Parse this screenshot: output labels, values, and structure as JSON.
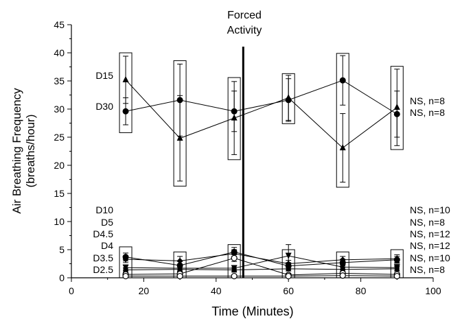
{
  "chart_data": {
    "type": "line",
    "title": "",
    "xlabel": "Time (Minutes)",
    "ylabel_line1": "Air Breathing Frequency",
    "ylabel_line2": "(breaths/hour)",
    "xlim": [
      0,
      100
    ],
    "ylim": [
      0,
      45
    ],
    "xticks": [
      "0",
      "20",
      "40",
      "60",
      "80",
      "100"
    ],
    "yticks": [
      "0",
      "5",
      "10",
      "15",
      "20",
      "25",
      "30",
      "35",
      "40",
      "45"
    ],
    "grid": false,
    "annotation": {
      "label_line1": "Forced",
      "label_line2": "Activity",
      "x": 47.5
    },
    "x": [
      15,
      30,
      45,
      60,
      75,
      90
    ],
    "series": [
      {
        "name": "D15",
        "marker": "triangle-up",
        "values": [
          35.2,
          24.8,
          28.4,
          32.0,
          23.1,
          30.3
        ],
        "err": [
          4.2,
          7.6,
          6.5,
          4.0,
          6.1,
          6.8
        ],
        "note": "NS, n=8"
      },
      {
        "name": "D30",
        "marker": "circle-filled",
        "values": [
          29.6,
          31.6,
          29.6,
          31.6,
          35.1,
          29.1
        ],
        "err": [
          2.4,
          6.4,
          3.6,
          3.8,
          4.4,
          4.1
        ],
        "note": "NS, n=8"
      },
      {
        "name": "D10",
        "marker": "diamond",
        "values": [
          3.3,
          3.0,
          4.3,
          2.5,
          3.2,
          3.4
        ],
        "err": [
          0.6,
          0.8,
          0.7,
          0.6,
          0.6,
          0.7
        ],
        "note": "NS, n=10"
      },
      {
        "name": "D5",
        "marker": "circle-filled",
        "values": [
          3.7,
          2.2,
          4.6,
          2.1,
          2.7,
          3.2
        ],
        "err": [
          0.7,
          0.7,
          0.8,
          0.6,
          0.6,
          0.6
        ],
        "note": "NS, n=8"
      },
      {
        "name": "D4.5",
        "marker": "triangle-down",
        "values": [
          1.8,
          1.7,
          1.7,
          3.9,
          1.9,
          1.8
        ],
        "err": [
          0.5,
          0.5,
          0.5,
          2.0,
          0.5,
          0.6
        ],
        "note": "NS, n=12"
      },
      {
        "name": "D4",
        "marker": "square",
        "values": [
          1.4,
          1.5,
          1.4,
          1.6,
          1.5,
          1.6
        ],
        "err": [
          0.4,
          0.4,
          0.4,
          0.4,
          0.4,
          0.4
        ],
        "note": "NS, n=12"
      },
      {
        "name": "D3.5",
        "marker": "circle-open",
        "values": [
          0.6,
          0.7,
          3.5,
          0.5,
          0.8,
          0.6
        ],
        "err": [
          0.3,
          0.3,
          0.6,
          0.3,
          0.3,
          0.3
        ],
        "note": "NS, n=10"
      },
      {
        "name": "D2.5",
        "marker": "circle-open",
        "values": [
          0.3,
          0.3,
          0.3,
          0.3,
          0.4,
          0.3
        ],
        "err": [
          0.2,
          0.2,
          0.2,
          0.2,
          0.2,
          0.2
        ],
        "note": "NS, n=8"
      }
    ],
    "boxes": [
      {
        "x": 15,
        "ylim": [
          25.8,
          40.0
        ]
      },
      {
        "x": 30,
        "ylim": [
          16.3,
          38.6
        ]
      },
      {
        "x": 45,
        "ylim": [
          21.0,
          35.6
        ]
      },
      {
        "x": 60,
        "ylim": [
          27.4,
          36.3
        ]
      },
      {
        "x": 75,
        "ylim": [
          16.1,
          39.9
        ]
      },
      {
        "x": 90,
        "ylim": [
          22.8,
          37.6
        ]
      },
      {
        "x": 15,
        "ylim": [
          0.0,
          5.5
        ]
      },
      {
        "x": 30,
        "ylim": [
          0.0,
          4.6
        ]
      },
      {
        "x": 45,
        "ylim": [
          0.0,
          5.9
        ]
      },
      {
        "x": 60,
        "ylim": [
          0.0,
          5.0
        ]
      },
      {
        "x": 75,
        "ylim": [
          0.0,
          4.6
        ]
      },
      {
        "x": 90,
        "ylim": [
          0.0,
          5.0
        ]
      }
    ]
  }
}
